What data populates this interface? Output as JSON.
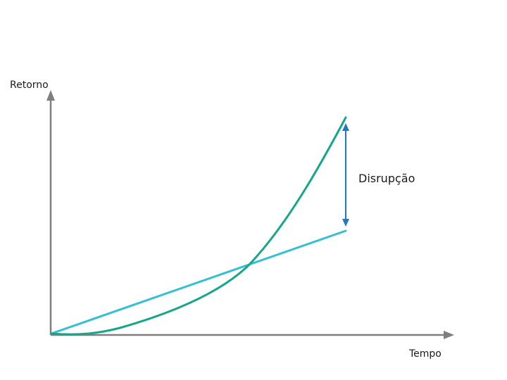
{
  "axes": {
    "y_label": "Retorno",
    "x_label": "Tempo"
  },
  "annotation": {
    "label": "Disrupção"
  },
  "colors": {
    "axis": "#7f7f7f",
    "linear_line": "#33bfd6",
    "exponential_curve": "#16a68a",
    "gap_arrow": "#1f78c4"
  }
}
